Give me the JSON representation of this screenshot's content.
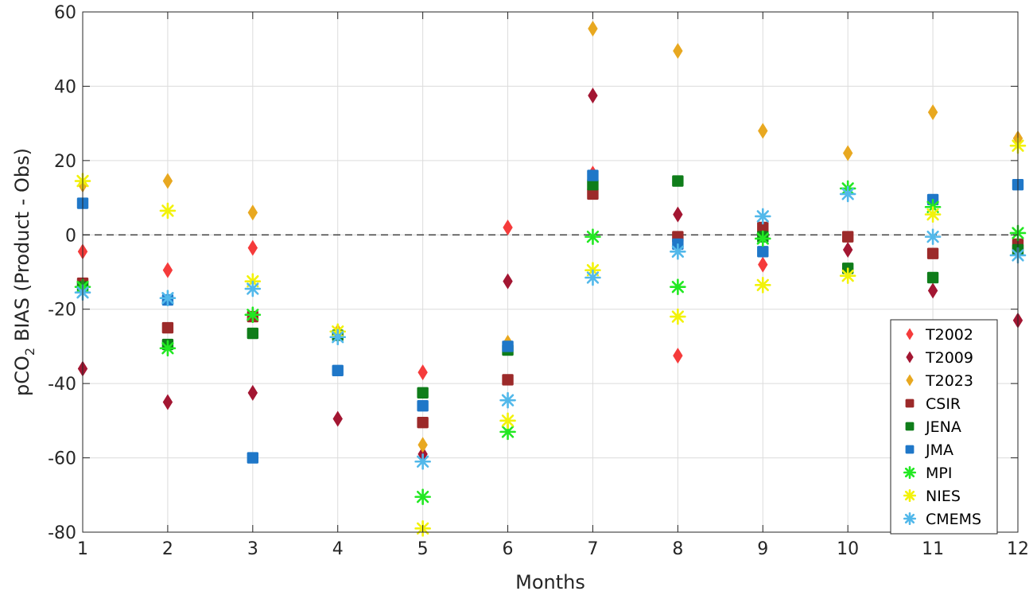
{
  "chart_data": {
    "type": "scatter",
    "title": "",
    "xlabel": "Months",
    "ylabel_parts": {
      "pre": "pCO",
      "sub": "2",
      "post": " BIAS (Product - Obs)"
    },
    "xlim": [
      1,
      12
    ],
    "ylim": [
      -80,
      60
    ],
    "xticks": [
      1,
      2,
      3,
      4,
      5,
      6,
      7,
      8,
      9,
      10,
      11,
      12
    ],
    "yticks": [
      -80,
      -60,
      -40,
      -20,
      0,
      20,
      40,
      60
    ],
    "grid": true,
    "reference_line": {
      "y": 0,
      "style": "dashed"
    },
    "legend_position": "bottom-right",
    "series": [
      {
        "name": "T2002",
        "marker": "diamond",
        "color": "#f53b3b",
        "values": [
          -4.5,
          -9.5,
          -3.5,
          null,
          -37,
          2,
          16.5,
          -32.5,
          -8,
          null,
          null,
          null
        ]
      },
      {
        "name": "T2009",
        "marker": "diamond",
        "color": "#a31632",
        "values": [
          -36,
          -45,
          -42.5,
          -49.5,
          -59,
          -12.5,
          37.5,
          5.5,
          1,
          -4,
          -15,
          -23
        ]
      },
      {
        "name": "T2023",
        "marker": "diamond",
        "color": "#e8a820",
        "values": [
          13.5,
          14.5,
          6,
          -26,
          -56.5,
          -29,
          55.5,
          49.5,
          28,
          22,
          33,
          26
        ]
      },
      {
        "name": "CSIR",
        "marker": "square",
        "color": "#9c2a2a",
        "values": [
          -13,
          -25,
          -22,
          null,
          -50.5,
          -39,
          11,
          -0.5,
          2,
          -0.5,
          -5,
          -2.5
        ]
      },
      {
        "name": "JENA",
        "marker": "square",
        "color": "#0f7d1a",
        "values": [
          -14,
          -29.5,
          -26.5,
          -27,
          -42.5,
          -31,
          13.5,
          14.5,
          -0.5,
          -9,
          -11.5,
          -4
        ]
      },
      {
        "name": "JMA",
        "marker": "square",
        "color": "#1f77c8",
        "values": [
          8.5,
          -17.5,
          -60,
          -36.5,
          -46,
          -30,
          16,
          -2.5,
          -4.5,
          null,
          9.5,
          13.5
        ]
      },
      {
        "name": "MPI",
        "marker": "asterisk",
        "color": "#22e822",
        "values": [
          -14,
          -30.5,
          -21.5,
          null,
          -70.5,
          -53,
          -0.5,
          -14,
          -1,
          12.5,
          7.5,
          0.5
        ]
      },
      {
        "name": "NIES",
        "marker": "asterisk",
        "color": "#f2f20a",
        "values": [
          14.5,
          6.5,
          -12.5,
          -26,
          -79,
          -50,
          -9.5,
          -22,
          -13.5,
          -11,
          5.5,
          24
        ]
      },
      {
        "name": "CMEMS",
        "marker": "asterisk",
        "color": "#52b8ea",
        "values": [
          -15.5,
          -17,
          -14.5,
          -27.5,
          -61,
          -44.5,
          -11.5,
          -4.5,
          5,
          11,
          -0.5,
          -5.5
        ]
      }
    ]
  }
}
